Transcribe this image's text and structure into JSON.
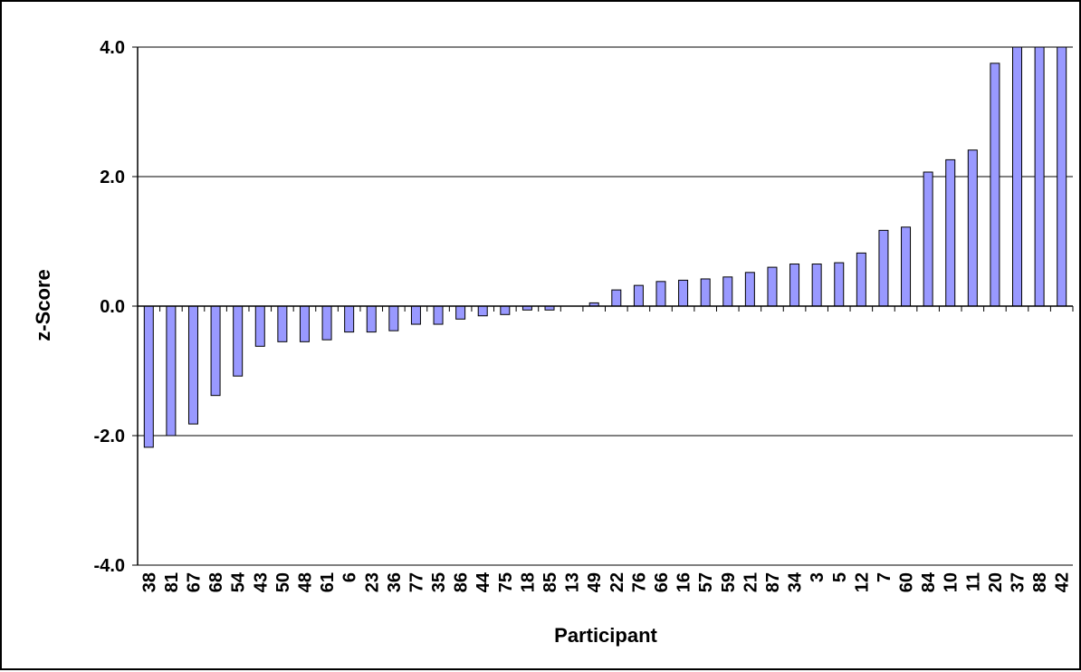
{
  "chart_data": {
    "type": "bar",
    "title": "",
    "xlabel": "Participant",
    "ylabel": "z-Score",
    "ylim": [
      -4.0,
      4.0
    ],
    "yticks": [
      "4.0",
      "2.0",
      "0.0",
      "-2.0",
      "-4.0"
    ],
    "ytick_values": [
      4,
      2,
      0,
      -2,
      -4
    ],
    "grid": "horizontal major gridlines",
    "legend": "none",
    "bar_color": "#9999FF",
    "bar_outline": "#000000",
    "categories": [
      "38",
      "81",
      "67",
      "68",
      "54",
      "43",
      "50",
      "48",
      "61",
      "6",
      "23",
      "36",
      "77",
      "35",
      "86",
      "44",
      "75",
      "18",
      "85",
      "13",
      "49",
      "22",
      "76",
      "66",
      "16",
      "57",
      "59",
      "21",
      "87",
      "34",
      "3",
      "5",
      "12",
      "7",
      "60",
      "84",
      "10",
      "11",
      "20",
      "37",
      "88",
      "42"
    ],
    "values": [
      -2.18,
      -2.0,
      -1.82,
      -1.38,
      -1.08,
      -0.62,
      -0.55,
      -0.55,
      -0.52,
      -0.4,
      -0.4,
      -0.38,
      -0.28,
      -0.28,
      -0.2,
      -0.15,
      -0.13,
      -0.06,
      -0.06,
      0.0,
      0.05,
      0.25,
      0.32,
      0.38,
      0.4,
      0.42,
      0.45,
      0.52,
      0.6,
      0.65,
      0.65,
      0.67,
      0.82,
      1.17,
      1.22,
      2.07,
      2.26,
      2.41,
      3.75,
      4.0,
      4.0,
      4.0
    ]
  }
}
